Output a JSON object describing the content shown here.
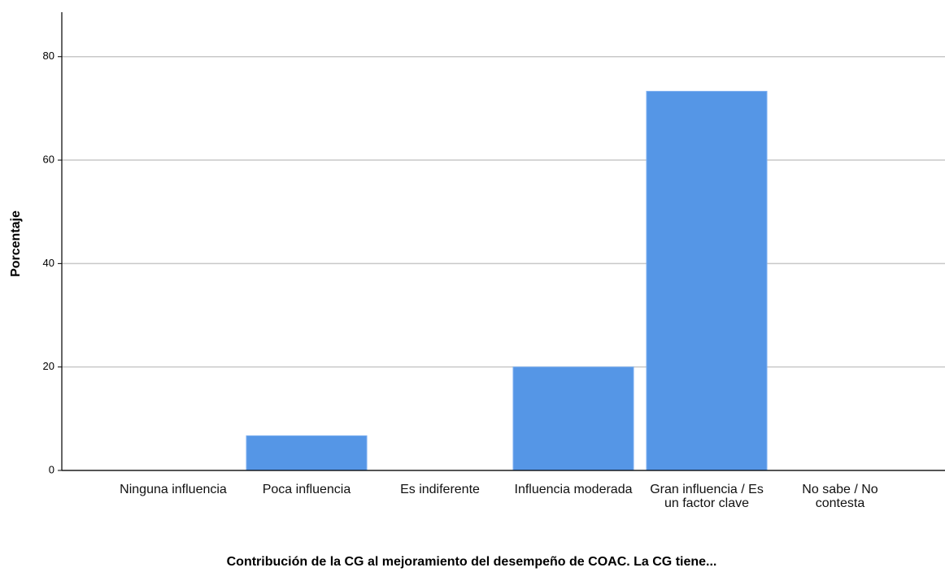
{
  "chart_data": {
    "type": "bar",
    "x_label": "Contribución de la CG al mejoramiento del desempeño de COAC. La CG tiene...",
    "y_label": "Porcentaje",
    "categories": [
      "Ninguna influencia",
      "Poca influencia",
      "Es indiferente",
      "Influencia moderada",
      "Gran influencia / Es un factor clave",
      "No sabe / No contesta"
    ],
    "values": [
      0,
      6.7,
      0,
      20,
      73.3,
      0
    ],
    "color": "#5596e6",
    "ylim": [
      0,
      88.6
    ],
    "yticks": [
      0,
      20,
      40,
      60,
      80
    ],
    "grid": true
  }
}
